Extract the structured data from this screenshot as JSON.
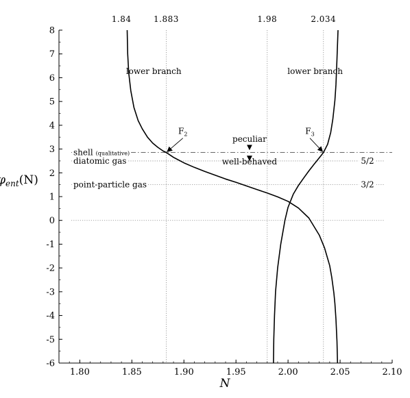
{
  "chart_data": {
    "type": "line",
    "xlabel": "N",
    "ylabel": "φ",
    "ylabel_sub": "ent",
    "ylabel_arg": "(N)",
    "xlim": [
      1.78,
      2.1
    ],
    "ylim": [
      -6,
      8
    ],
    "x_ticks": [
      "1.80",
      "1.85",
      "1.90",
      "1.95",
      "2.00",
      "2.05",
      "2.10"
    ],
    "y_ticks": [
      "-6",
      "-5",
      "-4",
      "-3",
      "-2",
      "-1",
      "0",
      "1",
      "2",
      "3",
      "4",
      "5",
      "6",
      "7",
      "8"
    ],
    "top_axis_labels": [
      {
        "x": 1.84,
        "label": "1.84"
      },
      {
        "x": 1.883,
        "label": "1.883"
      },
      {
        "x": 1.98,
        "label": "1.98"
      },
      {
        "x": 2.034,
        "label": "2.034"
      }
    ],
    "vertical_reference_lines": [
      1.883,
      1.98,
      2.034
    ],
    "horizontal_reference_lines": [
      {
        "y": 2.5,
        "style": "dotted",
        "left_label": "diatomic gas",
        "right_label": "5/2"
      },
      {
        "y": 1.5,
        "style": "dotted",
        "left_label": "point-particle gas",
        "right_label": "3/2"
      },
      {
        "y": 0,
        "style": "dotted",
        "left_label": "",
        "right_label": ""
      },
      {
        "y": 2.855,
        "style": "dash-dot",
        "left_label": "shell",
        "left_sublabel": "(qualitative)",
        "right_label": ""
      }
    ],
    "series": [
      {
        "x": [
          1.8455,
          1.846,
          1.847,
          1.849,
          1.852,
          1.856,
          1.86,
          1.865,
          1.87,
          1.875,
          1.88,
          1.883,
          1.89,
          1.9,
          1.91,
          1.92,
          1.93,
          1.94,
          1.95,
          1.96,
          1.97,
          1.98,
          1.99,
          2.0,
          2.01,
          2.02,
          2.03,
          2.035,
          2.04,
          2.042,
          2.044,
          2.045,
          2.046,
          2.047,
          2.0475
        ],
        "y": [
          8.0,
          7.0,
          6.2,
          5.45,
          4.75,
          4.2,
          3.85,
          3.5,
          3.25,
          3.07,
          2.92,
          2.855,
          2.65,
          2.42,
          2.23,
          2.06,
          1.9,
          1.74,
          1.6,
          1.45,
          1.3,
          1.15,
          0.99,
          0.8,
          0.52,
          0.1,
          -0.62,
          -1.15,
          -1.9,
          -2.4,
          -3.05,
          -3.5,
          -4.15,
          -5.1,
          -6.0
        ]
      },
      {
        "x": [
          1.986,
          1.9863,
          1.987,
          1.988,
          1.99,
          1.993,
          1.997,
          2.0,
          2.005,
          2.01,
          2.015,
          2.02,
          2.025,
          2.03,
          2.034,
          2.038,
          2.041,
          2.043,
          2.045,
          2.046,
          2.047,
          2.048
        ],
        "y": [
          -6.0,
          -5.0,
          -4.0,
          -3.0,
          -2.0,
          -1.0,
          0.0,
          0.55,
          1.1,
          1.47,
          1.78,
          2.08,
          2.36,
          2.63,
          2.855,
          3.2,
          3.7,
          4.25,
          5.05,
          5.7,
          6.8,
          8.0
        ]
      }
    ],
    "annotations": [
      {
        "text": "lower branch",
        "x": 1.871,
        "y": 6.15
      },
      {
        "text": "lower branch",
        "x": 2.026,
        "y": 6.15
      },
      {
        "text": "F",
        "subscript": "2",
        "x": 1.899,
        "y": 3.63,
        "arrow_to": {
          "x": 1.883,
          "y": 2.855
        }
      },
      {
        "text": "F",
        "subscript": "3",
        "x": 2.021,
        "y": 3.63,
        "arrow_to": {
          "x": 2.034,
          "y": 2.855
        }
      },
      {
        "text": "peculiar",
        "x": 1.963,
        "y": 3.3
      },
      {
        "text": "well-behaved",
        "x": 1.963,
        "y": 2.35
      }
    ],
    "grid": false,
    "legend": "none"
  }
}
